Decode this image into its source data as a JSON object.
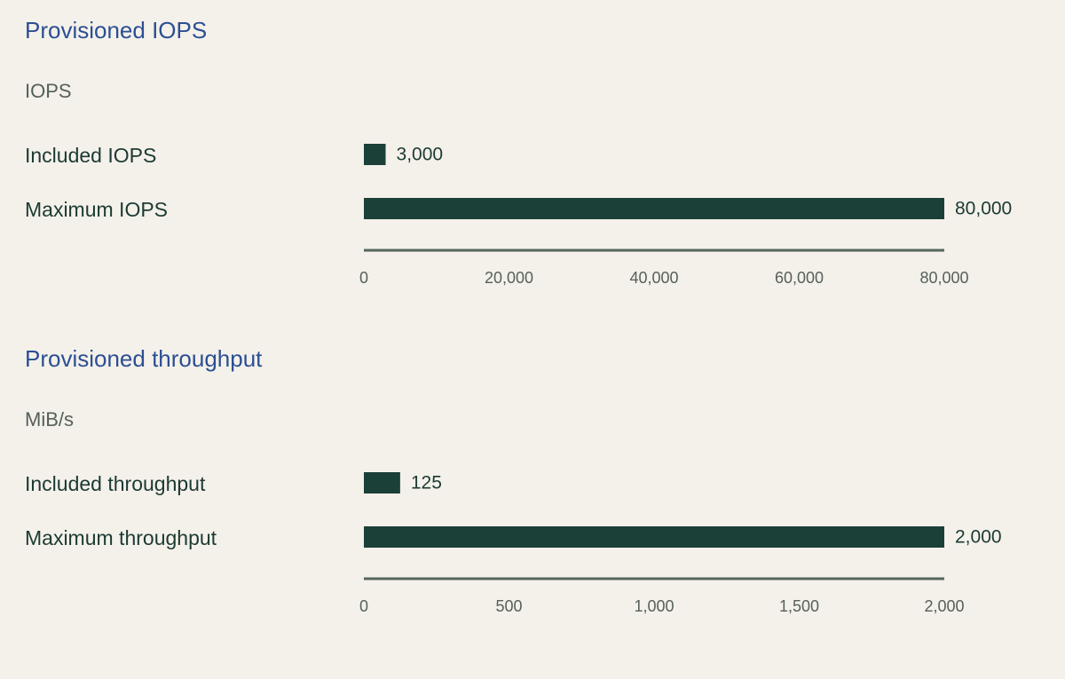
{
  "chart_data": [
    {
      "type": "hbar",
      "title": "Provisioned IOPS",
      "subtitle": "IOPS",
      "categories": [
        "Included IOPS",
        "Maximum IOPS"
      ],
      "values": [
        3000,
        80000
      ],
      "value_labels": [
        "3,000",
        "80,000"
      ],
      "color": "#1b4038",
      "xlim": [
        0,
        80000
      ],
      "xticks": [
        0,
        {
          "value": 20000,
          "label": "20,000"
        },
        {
          "value": 40000,
          "label": "40,000"
        },
        {
          "value": 60000,
          "label": "60,000"
        },
        {
          "value": 80000,
          "label": "80,000"
        }
      ]
    },
    {
      "type": "hbar",
      "title": "Provisioned throughput",
      "subtitle": "MiB/s",
      "categories": [
        "Included throughput",
        "Maximum throughput"
      ],
      "values": [
        125,
        2000
      ],
      "value_labels": [
        "125",
        "2,000"
      ],
      "color": "#1b4038",
      "xlim": [
        0,
        2000
      ],
      "xticks": [
        0,
        500,
        {
          "value": 1000,
          "label": "1,000"
        },
        {
          "value": 1500,
          "label": "1,500"
        },
        {
          "value": 2000,
          "label": "2,000"
        }
      ]
    }
  ]
}
